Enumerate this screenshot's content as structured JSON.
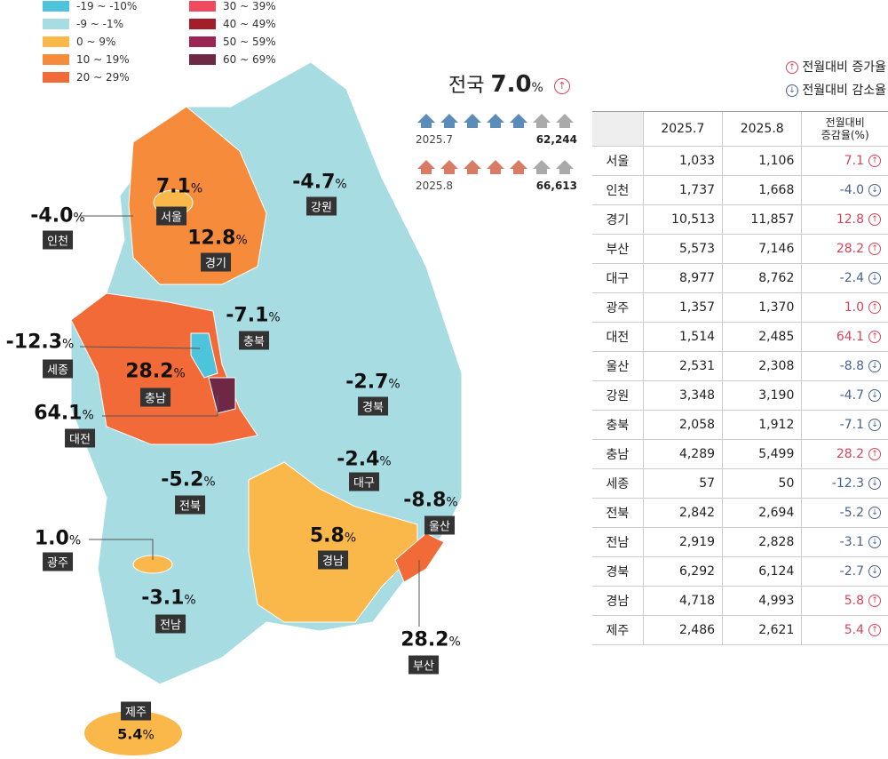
{
  "legend": [
    {
      "label": "-19 ~ -10%",
      "color": "#4dc3dc"
    },
    {
      "label": "-9 ~ -1%",
      "color": "#a7dce3"
    },
    {
      "label": "0 ~ 9%",
      "color": "#fbb84a"
    },
    {
      "label": "10 ~ 19%",
      "color": "#f68b3c"
    },
    {
      "label": "20 ~ 29%",
      "color": "#f26a37"
    },
    {
      "label": "30 ~ 39%",
      "color": "#f14a5f"
    },
    {
      "label": "40 ~ 49%",
      "color": "#a31d2a"
    },
    {
      "label": "50 ~ 59%",
      "color": "#9b2553"
    },
    {
      "label": "60 ~ 69%",
      "color": "#6e2846"
    }
  ],
  "national": {
    "label": "전국",
    "value": "7.0",
    "unit": "%",
    "rows": [
      {
        "period": "2025.7",
        "count": "62,244"
      },
      {
        "period": "2025.8",
        "count": "66,613"
      }
    ]
  },
  "change_legend": {
    "increase": "전월대비 증가율",
    "decrease": "전월대비 감소율"
  },
  "map_labels": [
    {
      "name": "서울",
      "value": "7.1",
      "unit": "%"
    },
    {
      "name": "인천",
      "value": "-4.0",
      "unit": "%"
    },
    {
      "name": "경기",
      "value": "12.8",
      "unit": "%"
    },
    {
      "name": "강원",
      "value": "-4.7",
      "unit": "%"
    },
    {
      "name": "세종",
      "value": "-12.3",
      "unit": "%"
    },
    {
      "name": "충북",
      "value": "-7.1",
      "unit": "%"
    },
    {
      "name": "충남",
      "value": "28.2",
      "unit": "%"
    },
    {
      "name": "대전",
      "value": "64.1",
      "unit": "%"
    },
    {
      "name": "경북",
      "value": "-2.7",
      "unit": "%"
    },
    {
      "name": "대구",
      "value": "-2.4",
      "unit": "%"
    },
    {
      "name": "울산",
      "value": "-8.8",
      "unit": "%"
    },
    {
      "name": "전북",
      "value": "-5.2",
      "unit": "%"
    },
    {
      "name": "경남",
      "value": "5.8",
      "unit": "%"
    },
    {
      "name": "광주",
      "value": "1.0",
      "unit": "%"
    },
    {
      "name": "전남",
      "value": "-3.1",
      "unit": "%"
    },
    {
      "name": "부산",
      "value": "28.2",
      "unit": "%"
    },
    {
      "name": "제주",
      "value": "5.4",
      "unit": "%"
    }
  ],
  "table": {
    "header": [
      "2025.7",
      "2025.8"
    ],
    "change_header": [
      "전월대비",
      "증감율(%)"
    ],
    "rows": [
      [
        "서울",
        "1,033",
        "1,106",
        "7.1"
      ],
      [
        "인천",
        "1,737",
        "1,668",
        "-4.0"
      ],
      [
        "경기",
        "10,513",
        "11,857",
        "12.8"
      ],
      [
        "부산",
        "5,573",
        "7,146",
        "28.2"
      ],
      [
        "대구",
        "8,977",
        "8,762",
        "-2.4"
      ],
      [
        "광주",
        "1,357",
        "1,370",
        "1.0"
      ],
      [
        "대전",
        "1,514",
        "2,485",
        "64.1"
      ],
      [
        "울산",
        "2,531",
        "2,308",
        "-8.8"
      ],
      [
        "강원",
        "3,348",
        "3,190",
        "-4.7"
      ],
      [
        "충북",
        "2,058",
        "1,912",
        "-7.1"
      ],
      [
        "충남",
        "4,289",
        "5,499",
        "28.2"
      ],
      [
        "세종",
        "57",
        "50",
        "-12.3"
      ],
      [
        "전북",
        "2,842",
        "2,694",
        "-5.2"
      ],
      [
        "전남",
        "2,919",
        "2,828",
        "-3.1"
      ],
      [
        "경북",
        "6,292",
        "6,124",
        "-2.7"
      ],
      [
        "경남",
        "4,718",
        "4,993",
        "5.8"
      ],
      [
        "제주",
        "2,486",
        "2,621",
        "5.4"
      ]
    ]
  }
}
